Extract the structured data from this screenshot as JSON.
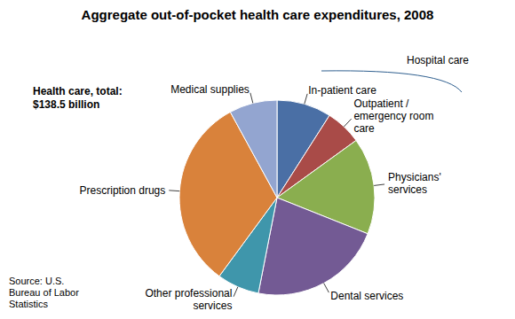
{
  "chart_data": {
    "type": "pie",
    "title": "Aggregate out-of-pocket health care expenditures, 2008",
    "subtitle": "Health care, total: $138.5 billion",
    "annotations": [
      "Hospital care"
    ],
    "source": "Source: U.S. Bureau of Labor Statistics",
    "categories": [
      "In-patient care",
      "Outpatient / emergency room care",
      "Physicians' services",
      "Dental services",
      "Other professional services",
      "Prescription drugs",
      "Medical supplies"
    ],
    "values": [
      12.5,
      8.3,
      22.2,
      30.5,
      9.7,
      44.3,
      11.0
    ],
    "colors": [
      "#4a6fa5",
      "#a94b48",
      "#8aae4f",
      "#735a94",
      "#3f96ab",
      "#d9823b",
      "#93a5d0"
    ]
  }
}
